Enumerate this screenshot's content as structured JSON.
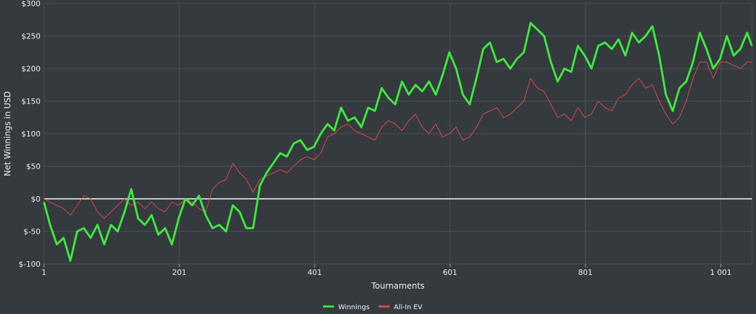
{
  "chart_data": {
    "type": "line",
    "xlabel": "Tournaments",
    "ylabel": "Net Winnings in USD",
    "xlim": [
      1,
      1047
    ],
    "ylim": [
      -100,
      300
    ],
    "x_ticks": [
      1,
      201,
      401,
      601,
      801,
      1001
    ],
    "x_tick_labels": [
      "1",
      "201",
      "401",
      "601",
      "801",
      "1 001"
    ],
    "y_ticks": [
      -100,
      -50,
      0,
      50,
      100,
      150,
      200,
      250,
      300
    ],
    "y_tick_labels": [
      "$-100",
      "$-50",
      "$0",
      "$50",
      "$100",
      "$150",
      "$200",
      "$250",
      "$300"
    ],
    "grid": true,
    "zero_line": true,
    "legend_position": "bottom-center",
    "series": [
      {
        "name": "Winnings",
        "color": "#3ee83e",
        "x": [
          1,
          10,
          20,
          30,
          40,
          50,
          60,
          70,
          80,
          90,
          100,
          110,
          120,
          130,
          140,
          150,
          160,
          170,
          180,
          190,
          200,
          210,
          220,
          230,
          240,
          250,
          260,
          270,
          280,
          290,
          300,
          310,
          320,
          330,
          340,
          350,
          360,
          370,
          380,
          390,
          400,
          410,
          420,
          430,
          440,
          450,
          460,
          470,
          480,
          490,
          500,
          510,
          520,
          530,
          540,
          550,
          560,
          570,
          580,
          590,
          600,
          610,
          620,
          630,
          640,
          650,
          660,
          670,
          680,
          690,
          700,
          710,
          720,
          730,
          740,
          750,
          760,
          770,
          780,
          790,
          800,
          810,
          820,
          830,
          840,
          850,
          860,
          870,
          880,
          890,
          900,
          910,
          920,
          930,
          940,
          950,
          960,
          970,
          980,
          990,
          1000,
          1010,
          1020,
          1030,
          1040,
          1047
        ],
        "values": [
          -5,
          -40,
          -70,
          -60,
          -95,
          -50,
          -45,
          -60,
          -40,
          -70,
          -40,
          -50,
          -20,
          15,
          -30,
          -40,
          -25,
          -55,
          -45,
          -70,
          -30,
          0,
          -10,
          5,
          -25,
          -45,
          -40,
          -50,
          -10,
          -20,
          -45,
          -45,
          20,
          40,
          55,
          70,
          65,
          85,
          90,
          75,
          80,
          100,
          115,
          105,
          140,
          120,
          125,
          110,
          140,
          135,
          170,
          155,
          145,
          180,
          160,
          175,
          165,
          180,
          160,
          190,
          225,
          200,
          160,
          145,
          185,
          230,
          240,
          210,
          215,
          200,
          215,
          225,
          270,
          260,
          250,
          210,
          180,
          200,
          195,
          235,
          220,
          200,
          235,
          240,
          230,
          245,
          220,
          255,
          240,
          250,
          265,
          220,
          160,
          135,
          170,
          180,
          210,
          255,
          230,
          200,
          215,
          250,
          220,
          230,
          255,
          235
        ],
        "line_width": 3
      },
      {
        "name": "All-In EV",
        "color": "#e04848",
        "x": [
          1,
          10,
          20,
          30,
          40,
          50,
          60,
          70,
          80,
          90,
          100,
          110,
          120,
          130,
          140,
          150,
          160,
          170,
          180,
          190,
          200,
          210,
          220,
          230,
          240,
          250,
          260,
          270,
          280,
          290,
          300,
          310,
          320,
          330,
          340,
          350,
          360,
          370,
          380,
          390,
          400,
          410,
          420,
          430,
          440,
          450,
          460,
          470,
          480,
          490,
          500,
          510,
          520,
          530,
          540,
          550,
          560,
          570,
          580,
          590,
          600,
          610,
          620,
          630,
          640,
          650,
          660,
          670,
          680,
          690,
          700,
          710,
          720,
          730,
          740,
          750,
          760,
          770,
          780,
          790,
          800,
          810,
          820,
          830,
          840,
          850,
          860,
          870,
          880,
          890,
          900,
          910,
          920,
          930,
          940,
          950,
          960,
          970,
          980,
          990,
          1000,
          1010,
          1020,
          1030,
          1040,
          1047
        ],
        "values": [
          0,
          -5,
          -10,
          -15,
          -25,
          -10,
          5,
          0,
          -20,
          -30,
          -20,
          -10,
          0,
          -10,
          -5,
          -15,
          -5,
          -15,
          -20,
          -5,
          -10,
          0,
          -5,
          -15,
          -20,
          15,
          25,
          30,
          55,
          40,
          30,
          10,
          30,
          35,
          40,
          45,
          40,
          50,
          60,
          65,
          60,
          70,
          95,
          100,
          110,
          115,
          105,
          100,
          95,
          90,
          110,
          120,
          115,
          105,
          120,
          130,
          110,
          100,
          115,
          95,
          100,
          110,
          90,
          95,
          110,
          130,
          135,
          140,
          125,
          130,
          140,
          150,
          185,
          170,
          165,
          145,
          125,
          130,
          120,
          140,
          125,
          130,
          150,
          140,
          135,
          155,
          160,
          175,
          185,
          170,
          175,
          150,
          130,
          115,
          125,
          150,
          185,
          210,
          210,
          185,
          210,
          210,
          205,
          200,
          210,
          210
        ],
        "line_width": 1
      }
    ]
  }
}
